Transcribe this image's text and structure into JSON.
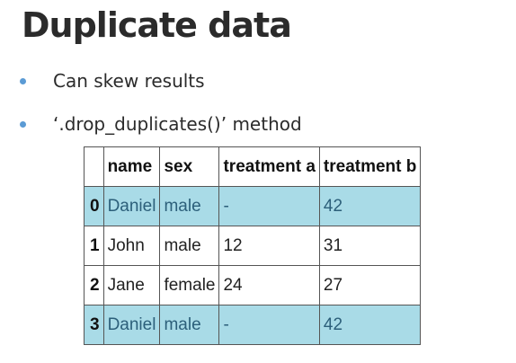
{
  "slide": {
    "title": "Duplicate data",
    "bullets": [
      "Can skew results",
      "‘.drop_duplicates()’ method"
    ],
    "accent_color": "#5b9bd5",
    "highlight_color": "#a9dbe7"
  },
  "table": {
    "index_header": "",
    "columns": [
      "name",
      "sex",
      "treatment a",
      "treatment b"
    ],
    "rows": [
      {
        "index": "0",
        "cells": [
          "Daniel",
          "male",
          "-",
          "42"
        ],
        "highlighted": true
      },
      {
        "index": "1",
        "cells": [
          "John",
          "male",
          "12",
          "31"
        ],
        "highlighted": false
      },
      {
        "index": "2",
        "cells": [
          "Jane",
          "female",
          "24",
          "27"
        ],
        "highlighted": false
      },
      {
        "index": "3",
        "cells": [
          "Daniel",
          "male",
          "-",
          "42"
        ],
        "highlighted": true
      }
    ]
  }
}
